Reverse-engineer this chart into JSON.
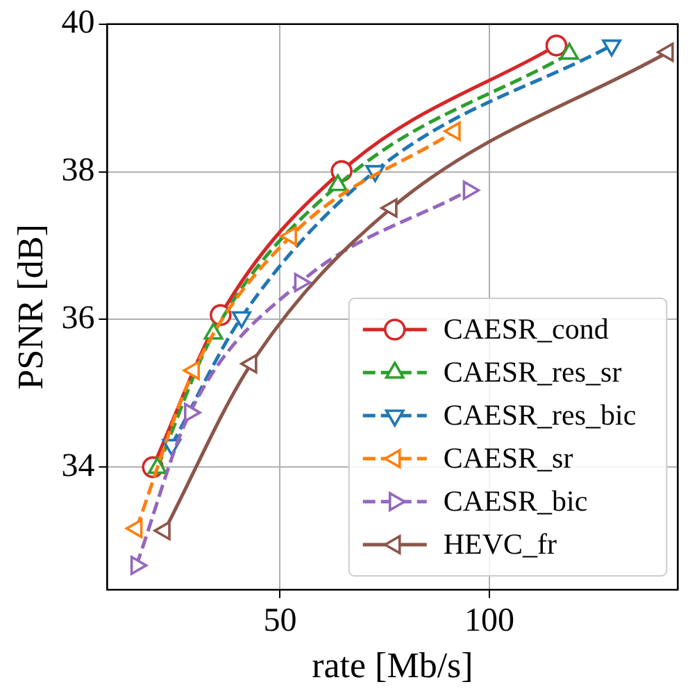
{
  "chart_data": {
    "type": "line",
    "xlabel": "rate [Mb/s]",
    "ylabel": "PSNR [dB]",
    "xlim": [
      8.7,
      145
    ],
    "ylim": [
      32.34,
      40
    ],
    "xticks": [
      50,
      100
    ],
    "yticks": [
      34,
      36,
      38,
      40
    ],
    "grid": true,
    "legend": "lower right",
    "series": [
      {
        "name": "CAESR_cond",
        "color": "#d62728",
        "marker": "circle",
        "line_style": "solid",
        "x": [
          19.6,
          35.8,
          64.7,
          116.0
        ],
        "values": [
          34.0,
          36.06,
          38.01,
          39.71
        ]
      },
      {
        "name": "CAESR_res_sr",
        "color": "#2ca02c",
        "marker": "triangle",
        "line_style": "dashed",
        "x": [
          20.7,
          34.1,
          63.8,
          119.1
        ],
        "values": [
          33.99,
          35.81,
          37.82,
          39.6
        ]
      },
      {
        "name": "CAESR_res_bic",
        "color": "#1f77b4",
        "marker": "triangle-down",
        "line_style": "dashed",
        "x": [
          24.1,
          40.8,
          72.7,
          129.2
        ],
        "values": [
          34.3,
          36.03,
          38.01,
          39.71
        ]
      },
      {
        "name": "CAESR_sr",
        "color": "#ff7f0e",
        "marker": "triangle-left",
        "line_style": "dashed",
        "x": [
          15.7,
          29.4,
          52.6,
          91.7
        ],
        "values": [
          33.17,
          35.31,
          37.13,
          38.55
        ]
      },
      {
        "name": "CAESR_bic",
        "color": "#9467bd",
        "marker": "triangle-right",
        "line_style": "dashed",
        "x": [
          15.7,
          28.5,
          54.8,
          95.1
        ],
        "values": [
          32.67,
          34.74,
          36.5,
          37.75
        ]
      },
      {
        "name": "HEVC_fr",
        "color": "#8c564b",
        "marker": "triangle-left",
        "line_style": "solid",
        "x": [
          22.4,
          43.1,
          76.6,
          142.6
        ],
        "values": [
          33.14,
          35.4,
          37.51,
          39.62
        ]
      }
    ]
  }
}
